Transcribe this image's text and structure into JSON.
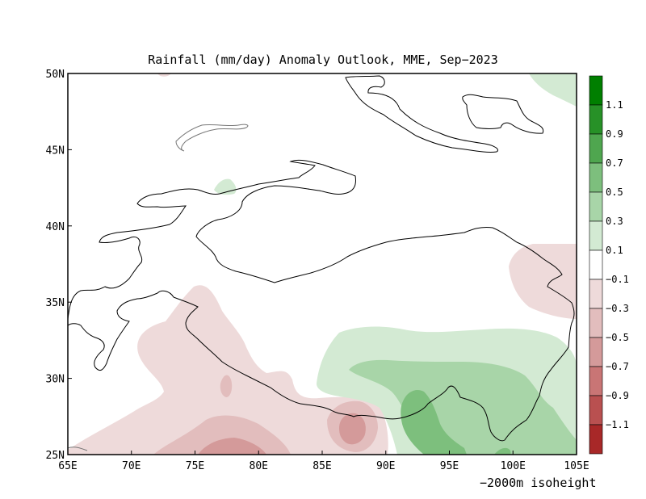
{
  "title": "Rainfall (mm/day) Anomaly Outlook, MME, Sep−2023",
  "footnote": "−2000m isoheight",
  "x_ticks": [
    "65E",
    "70E",
    "75E",
    "80E",
    "85E",
    "90E",
    "95E",
    "100E",
    "105E"
  ],
  "y_ticks": [
    "50N",
    "45N",
    "40N",
    "35N",
    "30N",
    "25N"
  ],
  "legend": {
    "labels": [
      "1.1",
      "0.9",
      "0.7",
      "0.5",
      "0.3",
      "0.1",
      "−0.1",
      "−0.3",
      "−0.5",
      "−0.7",
      "−0.9",
      "−1.1"
    ],
    "colors": [
      "#007f00",
      "#279127",
      "#4fa64f",
      "#7dbf7d",
      "#a8d5a8",
      "#d3ead3",
      "#ffffff",
      "#eedada",
      "#e2bdbd",
      "#d49a9a",
      "#c97575",
      "#b95050",
      "#a82828"
    ]
  },
  "extent": {
    "lon": [
      65,
      105
    ],
    "lat": [
      25,
      50
    ]
  },
  "colors": {
    "green_1": "#d3ead3",
    "green_2": "#a8d5a8",
    "green_3": "#7dbf7d",
    "green_4": "#4fa64f",
    "red_1": "#eedada",
    "red_2": "#e2bdbd",
    "red_3": "#d49a9a"
  }
}
